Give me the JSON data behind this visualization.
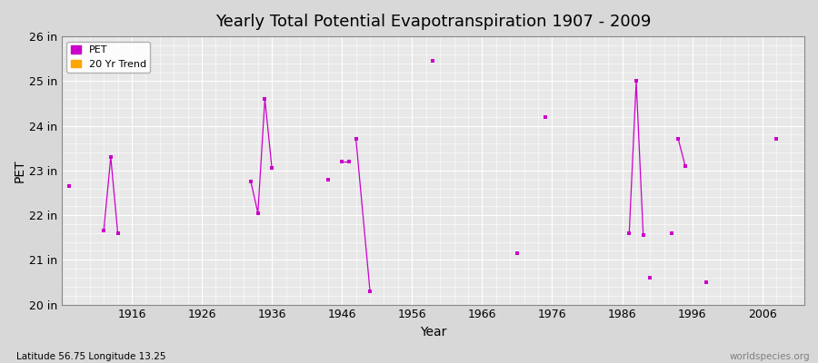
{
  "title": "Yearly Total Potential Evapotranspiration 1907 - 2009",
  "xlabel": "Year",
  "ylabel": "PET",
  "footnote_left": "Latitude 56.75 Longitude 13.25",
  "footnote_right": "worldspecies.org",
  "xlim": [
    1906,
    2012
  ],
  "ylim": [
    20,
    26
  ],
  "ytick_labels": [
    "20 in",
    "21 in",
    "22 in",
    "23 in",
    "24 in",
    "25 in",
    "26 in"
  ],
  "ytick_values": [
    20,
    21,
    22,
    23,
    24,
    25,
    26
  ],
  "xtick_values": [
    1916,
    1926,
    1936,
    1946,
    1956,
    1966,
    1976,
    1986,
    1996,
    2006
  ],
  "background_color": "#d8d8d8",
  "plot_bg_color": "#e8e8e8",
  "grid_color": "#ffffff",
  "pet_color": "#cc00cc",
  "trend_color": "#ffa500",
  "pet_data": [
    [
      1907,
      22.65
    ],
    [
      1912,
      21.65
    ],
    [
      1913,
      23.3
    ],
    [
      1914,
      21.6
    ],
    [
      1933,
      22.75
    ],
    [
      1934,
      22.05
    ],
    [
      1935,
      24.6
    ],
    [
      1936,
      23.05
    ],
    [
      1944,
      22.8
    ],
    [
      1946,
      23.2
    ],
    [
      1947,
      23.2
    ],
    [
      1948,
      23.7
    ],
    [
      1950,
      20.3
    ],
    [
      1959,
      25.45
    ],
    [
      1971,
      21.15
    ],
    [
      1975,
      24.2
    ],
    [
      1987,
      21.6
    ],
    [
      1988,
      25.0
    ],
    [
      1989,
      21.55
    ],
    [
      1990,
      20.6
    ],
    [
      1993,
      21.6
    ],
    [
      1994,
      23.7
    ],
    [
      1995,
      23.1
    ],
    [
      1998,
      20.5
    ],
    [
      2008,
      23.7
    ]
  ],
  "pet_line_segments": [
    [
      [
        1907,
        22.65
      ]
    ],
    [
      [
        1912,
        21.65
      ],
      [
        1913,
        23.3
      ],
      [
        1914,
        21.6
      ]
    ],
    [
      [
        1933,
        22.75
      ],
      [
        1934,
        22.05
      ],
      [
        1935,
        24.6
      ],
      [
        1936,
        23.05
      ]
    ],
    [
      [
        1944,
        22.8
      ]
    ],
    [
      [
        1946,
        23.2
      ],
      [
        1947,
        23.2
      ]
    ],
    [
      [
        1948,
        23.7
      ],
      [
        1950,
        20.3
      ]
    ],
    [
      [
        1959,
        25.45
      ]
    ],
    [
      [
        1971,
        21.15
      ]
    ],
    [
      [
        1975,
        24.2
      ]
    ],
    [
      [
        1987,
        21.6
      ],
      [
        1988,
        25.0
      ],
      [
        1989,
        21.55
      ]
    ],
    [
      [
        1990,
        20.6
      ]
    ],
    [
      [
        1993,
        21.6
      ]
    ],
    [
      [
        1994,
        23.7
      ],
      [
        1995,
        23.1
      ]
    ],
    [
      [
        1998,
        20.5
      ]
    ],
    [
      [
        2008,
        23.7
      ]
    ]
  ],
  "marker_size": 3,
  "legend_loc": "upper left"
}
